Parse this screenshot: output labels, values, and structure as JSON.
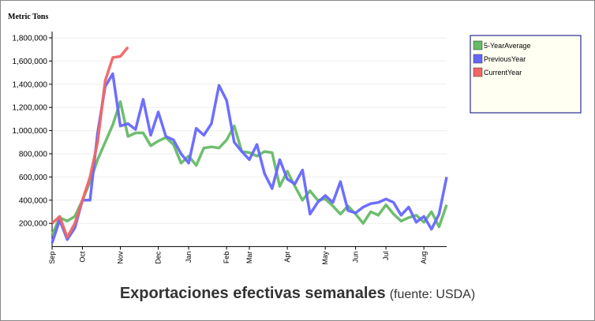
{
  "chart_data": {
    "type": "line",
    "title": "Exportaciones efectivas semanales",
    "subtitle": "(fuente: USDA)",
    "y_label": "Metric Tons",
    "categories": [
      "Sep",
      null,
      null,
      null,
      "Oct",
      null,
      null,
      null,
      null,
      "Nov",
      null,
      null,
      null,
      null,
      "Dec",
      null,
      null,
      null,
      "Jan",
      null,
      null,
      null,
      null,
      "Feb",
      null,
      null,
      "Mar",
      null,
      null,
      null,
      null,
      "Apr",
      null,
      null,
      null,
      null,
      "May",
      null,
      null,
      null,
      "Jun",
      null,
      null,
      null,
      "Jul",
      null,
      null,
      null,
      null,
      "Aug",
      null,
      null,
      null
    ],
    "series": [
      {
        "name": "5-YearAverage",
        "color": "#66bb66",
        "values": [
          100000,
          250000,
          220000,
          260000,
          400000,
          560000,
          750000,
          900000,
          1050000,
          1250000,
          950000,
          980000,
          980000,
          870000,
          910000,
          940000,
          880000,
          720000,
          780000,
          700000,
          850000,
          860000,
          850000,
          920000,
          1040000,
          820000,
          810000,
          780000,
          820000,
          810000,
          520000,
          650000,
          520000,
          400000,
          480000,
          400000,
          410000,
          350000,
          280000,
          350000,
          280000,
          200000,
          300000,
          270000,
          360000,
          280000,
          220000,
          250000,
          270000,
          210000,
          300000,
          170000,
          360000
        ]
      },
      {
        "name": "PreviousYear",
        "color": "#6666ff",
        "values": [
          30000,
          230000,
          60000,
          160000,
          400000,
          400000,
          980000,
          1380000,
          1490000,
          1040000,
          1060000,
          1010000,
          1270000,
          960000,
          1160000,
          950000,
          920000,
          800000,
          720000,
          1020000,
          960000,
          1060000,
          1390000,
          1260000,
          900000,
          820000,
          750000,
          880000,
          630000,
          500000,
          750000,
          580000,
          540000,
          660000,
          280000,
          380000,
          440000,
          380000,
          560000,
          310000,
          290000,
          340000,
          370000,
          380000,
          410000,
          380000,
          270000,
          340000,
          210000,
          260000,
          150000,
          280000,
          600000
        ]
      },
      {
        "name": "CurrentYear",
        "color": "#f06666",
        "values": [
          200000,
          260000,
          80000,
          200000,
          400000,
          600000,
          900000,
          1430000,
          1630000,
          1640000,
          1720000,
          null,
          null,
          null,
          null,
          null,
          null,
          null,
          null,
          null,
          null,
          null,
          null,
          null,
          null,
          null,
          null,
          null,
          null,
          null,
          null,
          null,
          null,
          null,
          null,
          null,
          null,
          null,
          null,
          null,
          null,
          null,
          null,
          null,
          null,
          null,
          null,
          null,
          null,
          null,
          null,
          null,
          null
        ]
      }
    ],
    "ylim": [
      0,
      1800000
    ],
    "yticks": [
      {
        "value": 200000,
        "label": "200,000"
      },
      {
        "value": 400000,
        "label": "400,000"
      },
      {
        "value": 600000,
        "label": "600,000"
      },
      {
        "value": 800000,
        "label": "800,000"
      },
      {
        "value": 1000000,
        "label": "1,000,000"
      },
      {
        "value": 1200000,
        "label": "1,200,000"
      },
      {
        "value": 1400000,
        "label": "1,400,000"
      },
      {
        "value": 1600000,
        "label": "1,600,000"
      },
      {
        "value": 1800000,
        "label": "1,800,000"
      }
    ],
    "grid": true,
    "legend": "top-right"
  }
}
